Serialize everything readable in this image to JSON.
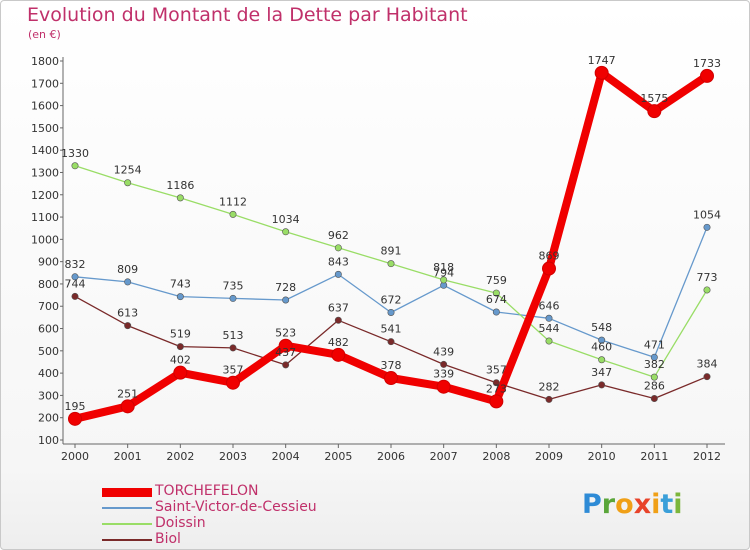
{
  "title": "Evolution du Montant de la Dette par Habitant",
  "unit_label": "(en €)",
  "logo": {
    "letters": [
      "P",
      "r",
      "o",
      "x",
      "i",
      "t",
      "i"
    ],
    "colors": [
      "#2e8bd6",
      "#5aa63a",
      "#f0a017",
      "#e8432a",
      "#f0a017",
      "#3a9fd9",
      "#7cb63b"
    ]
  },
  "chart_data": {
    "type": "line",
    "x": [
      "2000",
      "2001",
      "2002",
      "2003",
      "2004",
      "2005",
      "2006",
      "2007",
      "2008",
      "2009",
      "2010",
      "2011",
      "2012"
    ],
    "ylim": [
      100,
      1800
    ],
    "yticks": [
      "100",
      "200",
      "300",
      "400",
      "500",
      "600",
      "700",
      "800",
      "900",
      "1000",
      "1100",
      "1200",
      "1300",
      "1400",
      "1500",
      "1600",
      "1700",
      "1800"
    ],
    "grid": false,
    "legend_position": "bottom-left",
    "series": [
      {
        "name": "TORCHEFELON",
        "color": "#f00000",
        "emphasis": true,
        "values": [
          195,
          251,
          402,
          357,
          523,
          482,
          378,
          339,
          273,
          869,
          1747,
          1575,
          1733
        ],
        "labels": [
          "195",
          "251",
          "402",
          "357",
          "523",
          "482",
          "378",
          "339",
          "273",
          "869",
          "1747",
          "1575",
          "1733"
        ]
      },
      {
        "name": "Saint-Victor-de-Cessieu",
        "color": "#6699cc",
        "emphasis": false,
        "values": [
          832,
          809,
          743,
          735,
          728,
          843,
          672,
          794,
          674,
          646,
          548,
          471,
          1054
        ],
        "labels": [
          "832",
          "809",
          "743",
          "735",
          "728",
          "843",
          "672",
          "794",
          "674",
          "646",
          "548",
          "471",
          "1054"
        ]
      },
      {
        "name": "Doissin",
        "color": "#99dd66",
        "emphasis": false,
        "values": [
          1330,
          1254,
          1186,
          1112,
          1034,
          962,
          891,
          818,
          759,
          544,
          460,
          382,
          773
        ],
        "labels": [
          "1330",
          "1254",
          "1186",
          "1112",
          "1034",
          "962",
          "891",
          "818",
          "759",
          "544",
          "460",
          "382",
          "773"
        ]
      },
      {
        "name": "Biol",
        "color": "#7a2a2a",
        "emphasis": false,
        "values": [
          744,
          613,
          519,
          513,
          437,
          637,
          541,
          439,
          357,
          282,
          347,
          286,
          384
        ],
        "labels": [
          "744",
          "613",
          "519",
          "513",
          "437",
          "637",
          "541",
          "439",
          "357",
          "282",
          "347",
          "286",
          "384"
        ]
      }
    ]
  }
}
